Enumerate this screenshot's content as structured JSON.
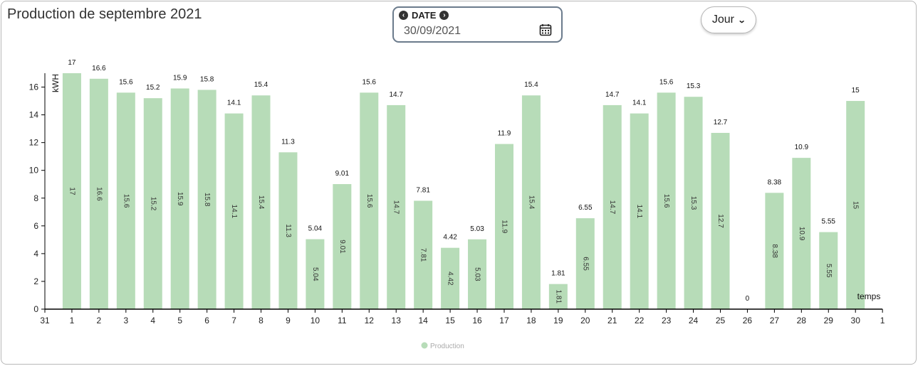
{
  "page": {
    "title": "Production de septembre 2021"
  },
  "date_picker": {
    "label": "DATE",
    "value": "30/09/2021",
    "prev_icon": "chevron-left-circle-icon",
    "next_icon": "chevron-right-circle-icon",
    "calendar_icon": "calendar-icon"
  },
  "period_select": {
    "value": "Jour",
    "icon": "chevron-down-icon"
  },
  "colors": {
    "bar": "#b7dcb8",
    "axis": "#000000"
  },
  "chart_data": {
    "type": "bar",
    "ylabel": "kWH",
    "xlabel": "temps",
    "ylim": [
      0,
      17
    ],
    "yticks": [
      0,
      2,
      4,
      6,
      8,
      10,
      12,
      14,
      16
    ],
    "xticks": [
      "31",
      "1",
      "2",
      "3",
      "4",
      "5",
      "6",
      "7",
      "8",
      "9",
      "10",
      "11",
      "12",
      "13",
      "14",
      "15",
      "16",
      "17",
      "18",
      "19",
      "20",
      "21",
      "22",
      "23",
      "24",
      "25",
      "26",
      "27",
      "28",
      "29",
      "30",
      "1"
    ],
    "categories": [
      "1",
      "2",
      "3",
      "4",
      "5",
      "6",
      "7",
      "8",
      "9",
      "10",
      "11",
      "12",
      "13",
      "14",
      "15",
      "16",
      "17",
      "18",
      "19",
      "20",
      "21",
      "22",
      "23",
      "24",
      "25",
      "26",
      "27",
      "28",
      "29",
      "30"
    ],
    "series": [
      {
        "name": "Production",
        "values": [
          17,
          16.6,
          15.6,
          15.2,
          15.9,
          15.8,
          14.1,
          15.4,
          11.3,
          5.04,
          9.01,
          15.6,
          14.7,
          7.81,
          4.42,
          5.03,
          11.9,
          15.4,
          1.81,
          6.55,
          14.7,
          14.1,
          15.6,
          15.3,
          12.7,
          0,
          8.38,
          10.9,
          5.55,
          15
        ]
      }
    ],
    "legend_position": "bottom-center",
    "grid": false
  }
}
